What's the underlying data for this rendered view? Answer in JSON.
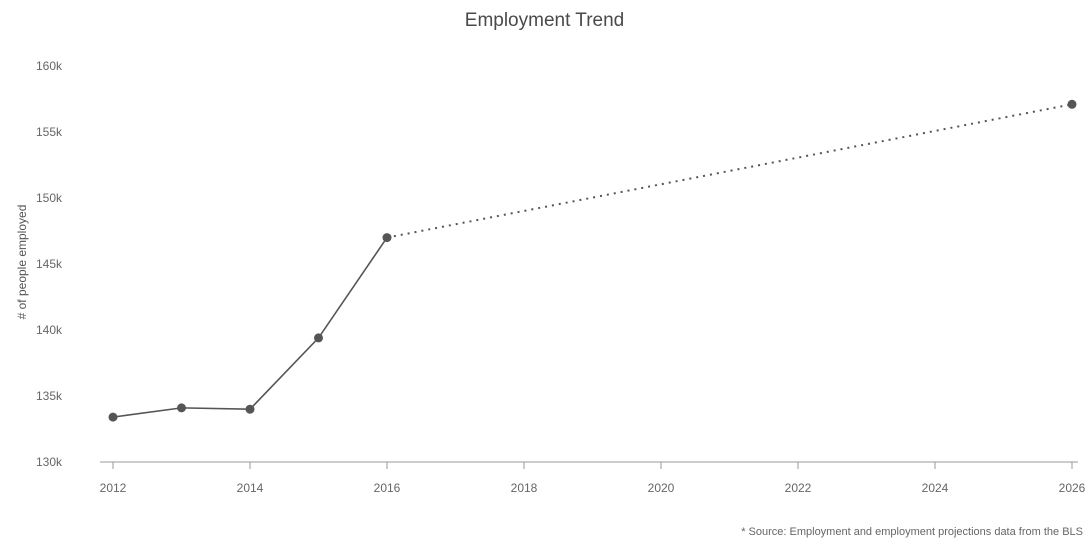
{
  "chart_data": {
    "type": "line",
    "title": "Employment Trend",
    "xlabel": "",
    "ylabel": "# of people employed",
    "xlim": [
      2012,
      2026
    ],
    "ylim": [
      130,
      155
    ],
    "x_ticks": [
      "2012",
      "2014",
      "2016",
      "2018",
      "2020",
      "2022",
      "2024",
      "2026"
    ],
    "y_ticks": [
      "130k",
      "135k",
      "140k",
      "145k",
      "150k",
      "155k",
      "160k"
    ],
    "series": [
      {
        "style": "solid",
        "color": "#555555",
        "x": [
          2012,
          2013,
          2014,
          2015,
          2016
        ],
        "y": [
          133.4,
          134.1,
          134.0,
          139.4,
          147.0
        ]
      },
      {
        "style": "dotted",
        "color": "#555555",
        "x": [
          2016,
          2026
        ],
        "y": [
          147.0,
          157.1
        ]
      }
    ],
    "grid": false,
    "legend": "none"
  },
  "footnote": "* Source: Employment and employment projections data from the BLS"
}
